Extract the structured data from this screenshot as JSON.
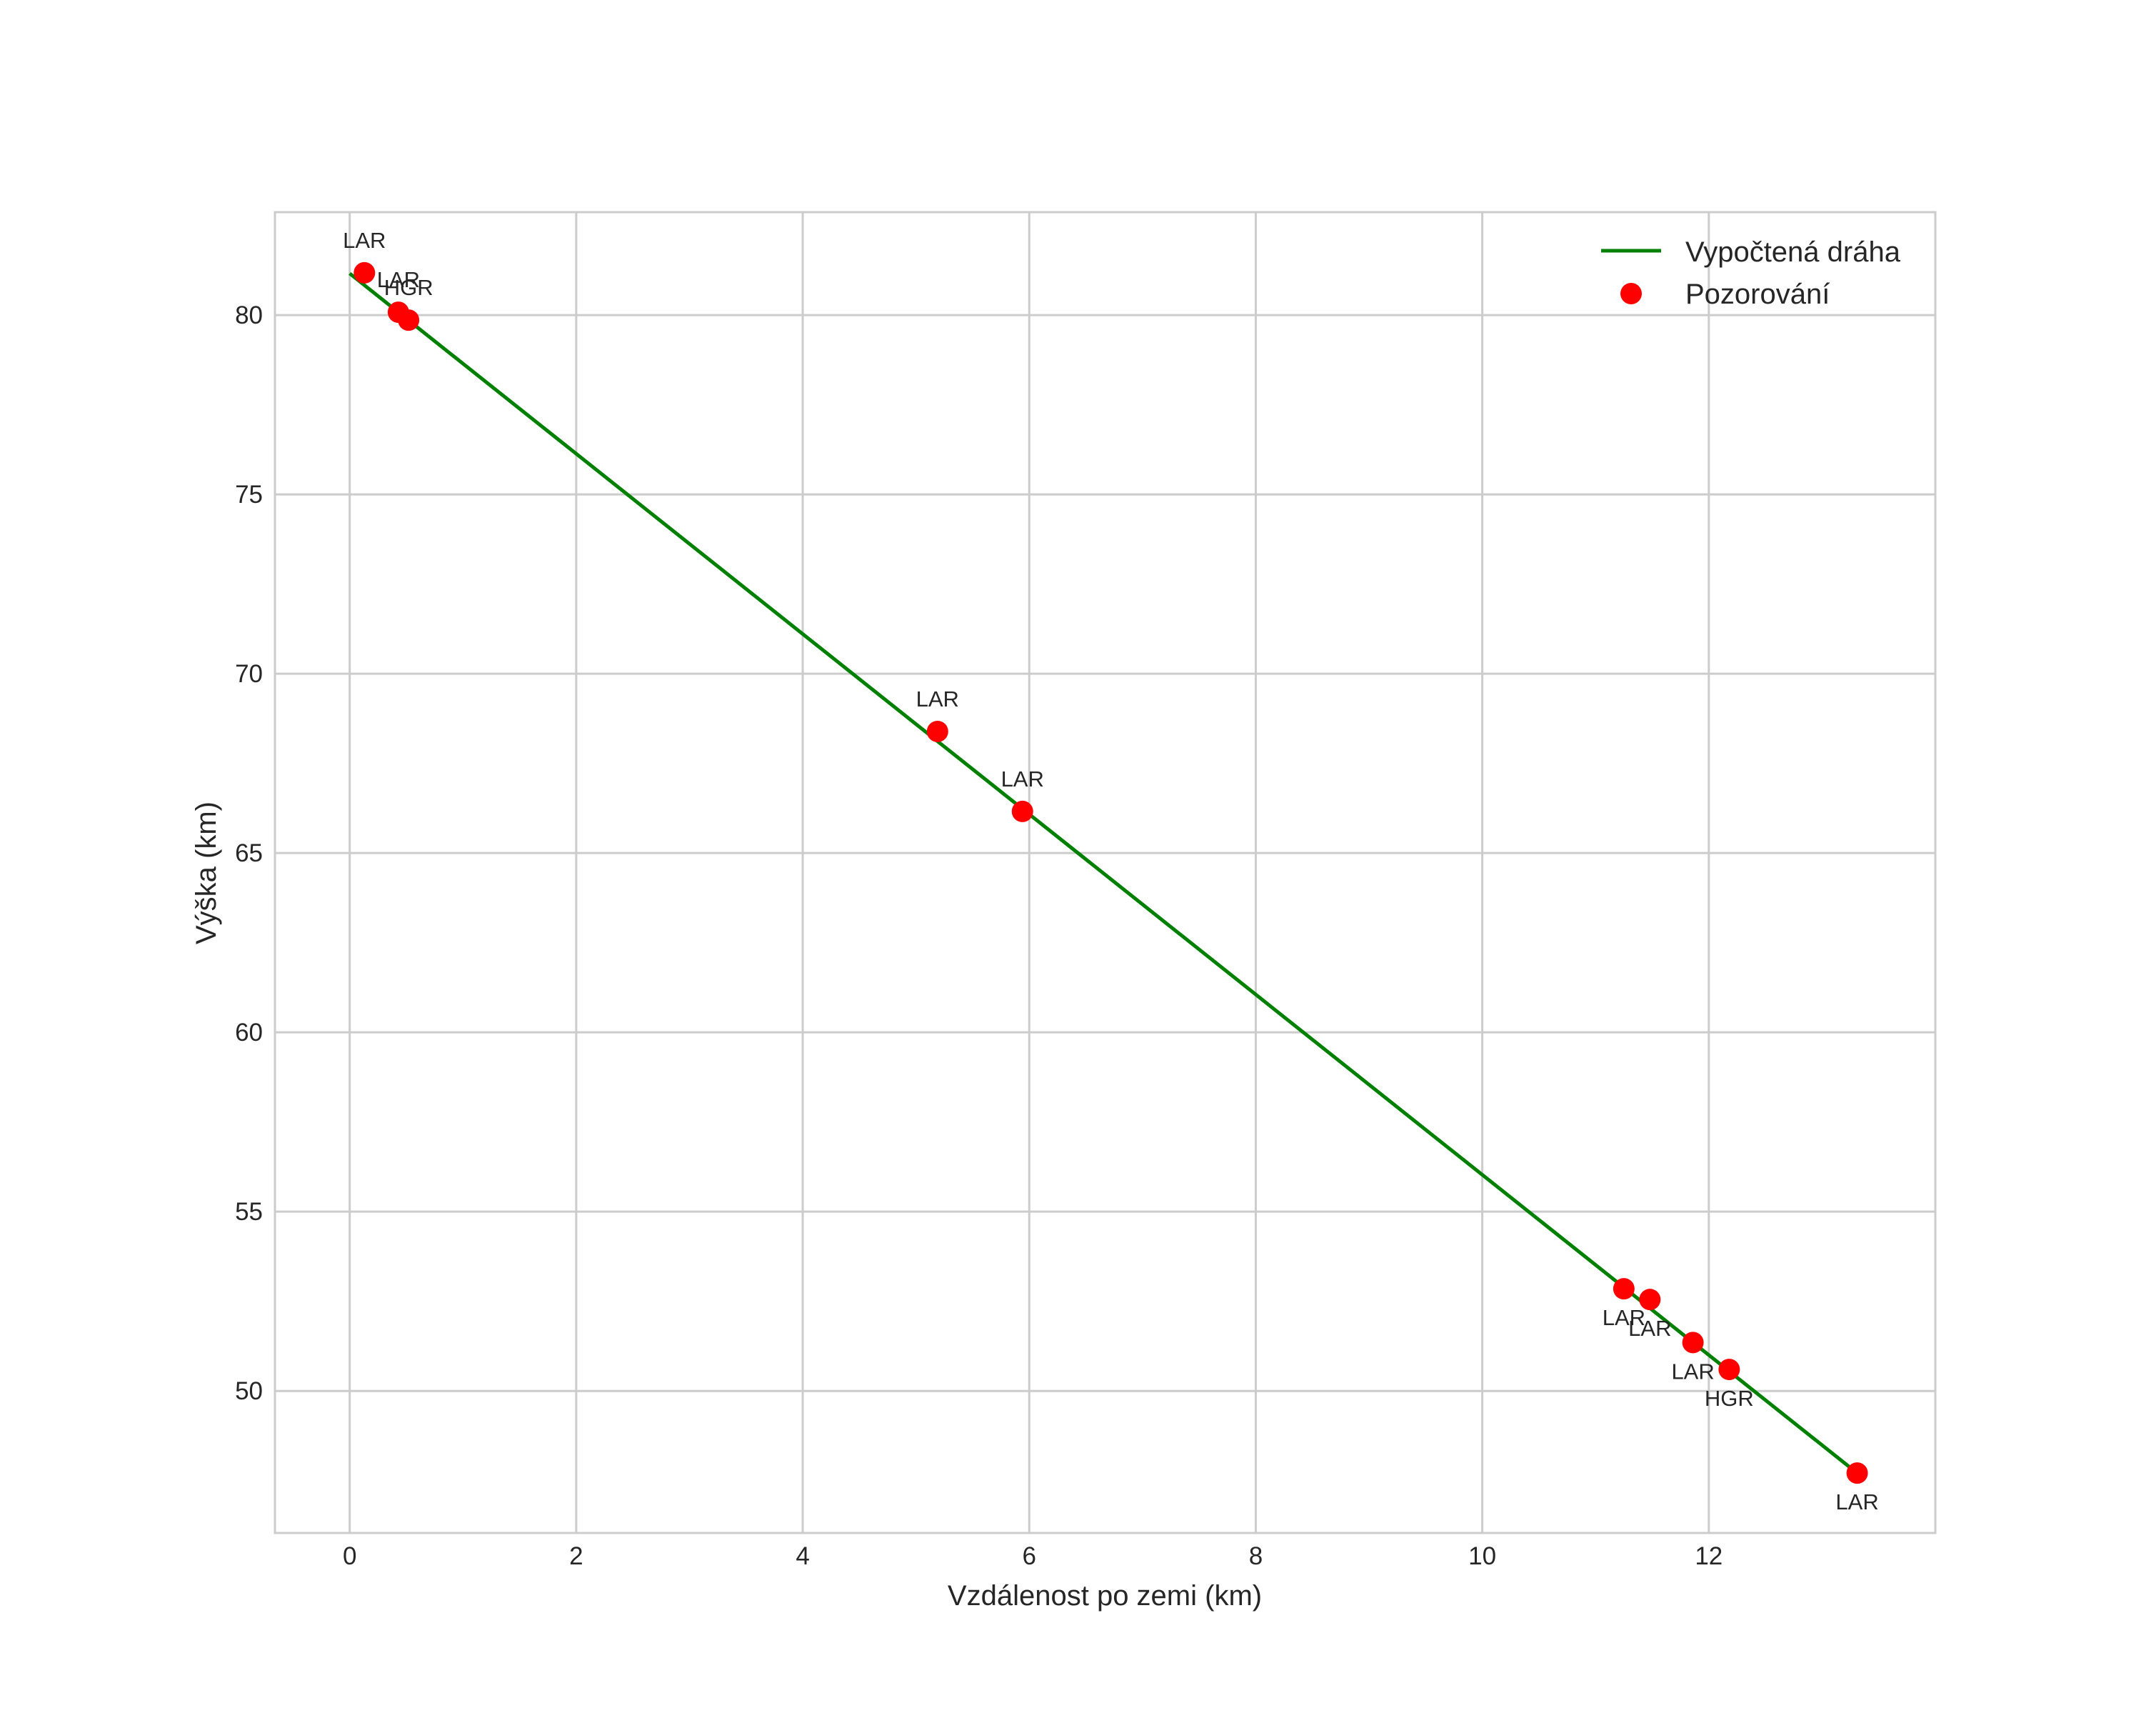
{
  "chart_data": {
    "type": "line+scatter",
    "title": "",
    "xlabel": "Vzdálenost po zemi (km)",
    "ylabel": "Výška (km)",
    "xlim": [
      -0.66,
      14.0
    ],
    "ylim": [
      46.04,
      82.87
    ],
    "xticks": [
      0,
      2,
      4,
      6,
      8,
      10,
      12
    ],
    "yticks": [
      50,
      55,
      60,
      65,
      70,
      75,
      80
    ],
    "grid": true,
    "legend_position": "upper right",
    "series": [
      {
        "name": "Vypočtená dráha",
        "type": "line",
        "color": "#008000",
        "x": [
          0.0,
          13.31
        ],
        "y": [
          81.16,
          47.71
        ]
      },
      {
        "name": "Pozorování",
        "type": "scatter",
        "color": "#ff0000",
        "points": [
          {
            "x": 0.13,
            "y": 81.18,
            "label": "LAR",
            "label_pos": "above"
          },
          {
            "x": 0.43,
            "y": 80.08,
            "label": "LAR",
            "label_pos": "above"
          },
          {
            "x": 0.52,
            "y": 79.86,
            "label": "HGR",
            "label_pos": "above"
          },
          {
            "x": 5.19,
            "y": 68.39,
            "label": "LAR",
            "label_pos": "above"
          },
          {
            "x": 5.94,
            "y": 66.16,
            "label": "LAR",
            "label_pos": "above"
          },
          {
            "x": 11.25,
            "y": 52.85,
            "label": "LAR",
            "label_pos": "below"
          },
          {
            "x": 11.48,
            "y": 52.55,
            "label": "LAR",
            "label_pos": "below"
          },
          {
            "x": 11.86,
            "y": 51.35,
            "label": "LAR",
            "label_pos": "below"
          },
          {
            "x": 12.18,
            "y": 50.6,
            "label": "HGR",
            "label_pos": "below"
          },
          {
            "x": 13.31,
            "y": 47.71,
            "label": "LAR",
            "label_pos": "below"
          }
        ]
      }
    ]
  },
  "legend": {
    "items": [
      {
        "label": "Vypočtená dráha",
        "kind": "line",
        "color": "#008000"
      },
      {
        "label": "Pozorování",
        "kind": "marker",
        "color": "#ff0000"
      }
    ]
  },
  "style": {
    "grid_color": "#cccccc",
    "frame_color": "#cccccc",
    "text_color": "#262626"
  }
}
